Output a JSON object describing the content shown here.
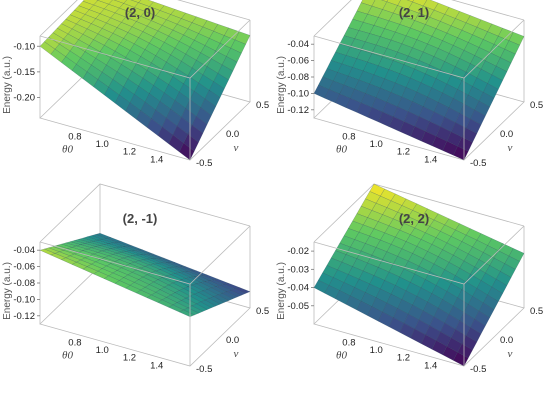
{
  "chart_data": [
    {
      "type": "surface",
      "title": "(2, 0)",
      "zlabel": "Energy (a.u.)",
      "xlabel": "θ0",
      "ylabel": "ν",
      "xlim": [
        0.5,
        1.6
      ],
      "ylim": [
        -0.5,
        0.5
      ],
      "zlim": [
        -0.24,
        -0.08
      ],
      "xticks": [
        "0.8",
        "1.0",
        "1.2",
        "1.4"
      ],
      "yticks": [
        "-0.5",
        "0.0",
        "0.5"
      ],
      "zticks": [
        "-0.10",
        "-0.15",
        "-0.20"
      ],
      "corners": {
        "theta_min_nu_min": -0.1,
        "theta_max_nu_min": -0.24,
        "theta_min_nu_max": -0.09,
        "theta_max_nu_max": -0.11
      }
    },
    {
      "type": "surface",
      "title": "(2, 1)",
      "zlabel": "Energy (a.u.)",
      "xlabel": "θ0",
      "ylabel": "ν",
      "xlim": [
        0.5,
        1.6
      ],
      "ylim": [
        -0.5,
        0.5
      ],
      "zlim": [
        -0.13,
        -0.03
      ],
      "xticks": [
        "0.8",
        "1.0",
        "1.2",
        "1.4"
      ],
      "yticks": [
        "-0.5",
        "0.0",
        "0.5"
      ],
      "zticks": [
        "-0.04",
        "-0.06",
        "-0.08",
        "-0.10",
        "-0.12"
      ],
      "corners": {
        "theta_min_nu_min": -0.1,
        "theta_max_nu_min": -0.13,
        "theta_min_nu_max": -0.03,
        "theta_max_nu_max": -0.05
      }
    },
    {
      "type": "surface",
      "title": "(2, -1)",
      "zlabel": "Energy (a.u.)",
      "xlabel": "θ0",
      "ylabel": "ν",
      "xlim": [
        0.5,
        1.6
      ],
      "ylim": [
        -0.5,
        0.5
      ],
      "zlim": [
        -0.13,
        -0.03
      ],
      "xticks": [
        "0.8",
        "1.0",
        "1.2",
        "1.4"
      ],
      "yticks": [
        "-0.5",
        "0.0",
        "0.5"
      ],
      "zticks": [
        "-0.04",
        "-0.06",
        "-0.08",
        "-0.10",
        "-0.12"
      ],
      "corners": {
        "theta_min_nu_min": -0.04,
        "theta_max_nu_min": -0.07,
        "theta_min_nu_max": -0.09,
        "theta_max_nu_max": -0.11
      }
    },
    {
      "type": "surface",
      "title": "(2, 2)",
      "zlabel": "Energy (a.u.)",
      "xlabel": "θ0",
      "ylabel": "ν",
      "xlim": [
        0.5,
        1.6
      ],
      "ylim": [
        -0.5,
        0.5
      ],
      "zlim": [
        -0.06,
        -0.015
      ],
      "xticks": [
        "0.8",
        "1.0",
        "1.2",
        "1.4"
      ],
      "yticks": [
        "-0.5",
        "0.0",
        "0.5"
      ],
      "zticks": [
        "-0.02",
        "-0.03",
        "-0.04",
        "-0.05"
      ],
      "corners": {
        "theta_min_nu_min": -0.04,
        "theta_max_nu_min": -0.06,
        "theta_min_nu_max": -0.015,
        "theta_max_nu_max": -0.03
      }
    }
  ],
  "colormap": [
    "#440154",
    "#3b528b",
    "#21918c",
    "#5ec962",
    "#fde725"
  ]
}
